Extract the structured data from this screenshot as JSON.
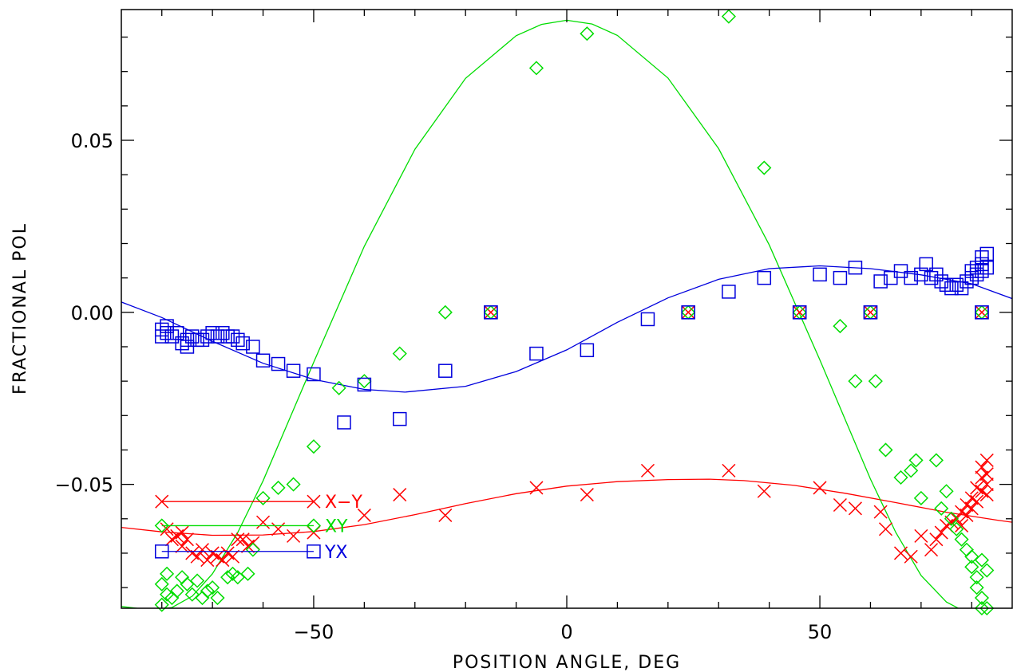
{
  "chart_data": {
    "type": "scatter",
    "xlabel": "POSITION ANGLE, DEG",
    "ylabel": "FRACTIONAL POL",
    "xlim": [
      -88,
      88
    ],
    "ylim": [
      -0.086,
      0.088
    ],
    "x_ticks": [
      {
        "value": -50,
        "label": "−50"
      },
      {
        "value": 0,
        "label": "0"
      },
      {
        "value": 50,
        "label": "50"
      }
    ],
    "y_ticks": [
      {
        "value": -0.05,
        "label": "−0.05"
      },
      {
        "value": 0.0,
        "label": "0.00"
      },
      {
        "value": 0.05,
        "label": "0.05"
      }
    ],
    "grid": false,
    "legend_position": "left",
    "series": [
      {
        "name": "X−Y",
        "color": "#ff0000",
        "marker": "cross",
        "points": [
          [
            -79,
            -0.063
          ],
          [
            -78,
            -0.066
          ],
          [
            -77,
            -0.065
          ],
          [
            -76,
            -0.068
          ],
          [
            -76,
            -0.064
          ],
          [
            -75,
            -0.066
          ],
          [
            -74,
            -0.07
          ],
          [
            -73,
            -0.071
          ],
          [
            -72,
            -0.069
          ],
          [
            -71,
            -0.072
          ],
          [
            -70,
            -0.07
          ],
          [
            -69,
            -0.071
          ],
          [
            -68,
            -0.072
          ],
          [
            -67,
            -0.07
          ],
          [
            -66,
            -0.071
          ],
          [
            -65,
            -0.066
          ],
          [
            -64,
            -0.066
          ],
          [
            -63,
            -0.068
          ],
          [
            -62,
            -0.067
          ],
          [
            -60,
            -0.061
          ],
          [
            -57,
            -0.063
          ],
          [
            -54,
            -0.065
          ],
          [
            -50,
            -0.064
          ],
          [
            -40,
            -0.059
          ],
          [
            -33,
            -0.053
          ],
          [
            -24,
            -0.059
          ],
          [
            -6,
            -0.051
          ],
          [
            4,
            -0.053
          ],
          [
            16,
            -0.046
          ],
          [
            32,
            -0.046
          ],
          [
            39,
            -0.052
          ],
          [
            50,
            -0.051
          ],
          [
            54,
            -0.056
          ],
          [
            57,
            -0.057
          ],
          [
            62,
            -0.058
          ],
          [
            63,
            -0.063
          ],
          [
            66,
            -0.07
          ],
          [
            68,
            -0.071
          ],
          [
            70,
            -0.065
          ],
          [
            72,
            -0.069
          ],
          [
            73,
            -0.066
          ],
          [
            74,
            -0.064
          ],
          [
            75,
            -0.062
          ],
          [
            76,
            -0.061
          ],
          [
            77,
            -0.06
          ],
          [
            78,
            -0.058
          ],
          [
            78,
            -0.062
          ],
          [
            79,
            -0.056
          ],
          [
            79,
            -0.059
          ],
          [
            80,
            -0.054
          ],
          [
            80,
            -0.057
          ],
          [
            81,
            -0.051
          ],
          [
            81,
            -0.055
          ],
          [
            82,
            -0.048
          ],
          [
            82,
            -0.052
          ],
          [
            82,
            -0.045
          ],
          [
            83,
            -0.05
          ],
          [
            83,
            -0.043
          ],
          [
            83,
            -0.047
          ],
          [
            83,
            -0.053
          ]
        ],
        "fit": [
          [
            -88,
            -0.0625
          ],
          [
            -80,
            -0.0638
          ],
          [
            -70,
            -0.0648
          ],
          [
            -60,
            -0.0647
          ],
          [
            -50,
            -0.0637
          ],
          [
            -40,
            -0.0617
          ],
          [
            -30,
            -0.0588
          ],
          [
            -20,
            -0.0556
          ],
          [
            -10,
            -0.0527
          ],
          [
            0,
            -0.0505
          ],
          [
            10,
            -0.0492
          ],
          [
            20,
            -0.0486
          ],
          [
            28,
            -0.0485
          ],
          [
            35,
            -0.0489
          ],
          [
            45,
            -0.0503
          ],
          [
            55,
            -0.0526
          ],
          [
            65,
            -0.0553
          ],
          [
            75,
            -0.0581
          ],
          [
            85,
            -0.0604
          ],
          [
            88,
            -0.061
          ]
        ]
      },
      {
        "name": "XY",
        "color": "#00dd00",
        "marker": "diamond",
        "points": [
          [
            -80,
            -0.085
          ],
          [
            -80,
            -0.079
          ],
          [
            -79,
            -0.082
          ],
          [
            -79,
            -0.076
          ],
          [
            -78,
            -0.083
          ],
          [
            -77,
            -0.081
          ],
          [
            -76,
            -0.077
          ],
          [
            -75,
            -0.079
          ],
          [
            -74,
            -0.082
          ],
          [
            -73,
            -0.078
          ],
          [
            -72,
            -0.083
          ],
          [
            -71,
            -0.081
          ],
          [
            -70,
            -0.08
          ],
          [
            -69,
            -0.083
          ],
          [
            -67,
            -0.077
          ],
          [
            -66,
            -0.076
          ],
          [
            -65,
            -0.077
          ],
          [
            -63,
            -0.076
          ],
          [
            -62,
            -0.069
          ],
          [
            -60,
            -0.054
          ],
          [
            -57,
            -0.051
          ],
          [
            -54,
            -0.05
          ],
          [
            -50,
            -0.039
          ],
          [
            -45,
            -0.022
          ],
          [
            -40,
            -0.02
          ],
          [
            -33,
            -0.012
          ],
          [
            -24,
            0.0
          ],
          [
            -6,
            0.071
          ],
          [
            4,
            0.081
          ],
          [
            32,
            0.086
          ],
          [
            39,
            0.042
          ],
          [
            54,
            -0.004
          ],
          [
            57,
            -0.02
          ],
          [
            61,
            -0.02
          ],
          [
            63,
            -0.04
          ],
          [
            66,
            -0.048
          ],
          [
            68,
            -0.046
          ],
          [
            69,
            -0.043
          ],
          [
            70,
            -0.054
          ],
          [
            73,
            -0.043
          ],
          [
            74,
            -0.057
          ],
          [
            75,
            -0.052
          ],
          [
            76,
            -0.06
          ],
          [
            77,
            -0.063
          ],
          [
            78,
            -0.066
          ],
          [
            79,
            -0.069
          ],
          [
            80,
            -0.071
          ],
          [
            80,
            -0.074
          ],
          [
            81,
            -0.077
          ],
          [
            81,
            -0.08
          ],
          [
            82,
            -0.072
          ],
          [
            82,
            -0.083
          ],
          [
            82,
            -0.086
          ],
          [
            83,
            -0.086
          ],
          [
            83,
            -0.075
          ]
        ],
        "fit": [
          [
            -88,
            -0.0855
          ],
          [
            -82,
            -0.0865
          ],
          [
            -78,
            -0.0858
          ],
          [
            -74,
            -0.0825
          ],
          [
            -70,
            -0.076
          ],
          [
            -65,
            -0.064
          ],
          [
            -60,
            -0.049
          ],
          [
            -50,
            -0.0145
          ],
          [
            -40,
            0.0192
          ],
          [
            -30,
            0.0474
          ],
          [
            -20,
            0.068
          ],
          [
            -10,
            0.0804
          ],
          [
            -5,
            0.0837
          ],
          [
            0,
            0.0849
          ],
          [
            5,
            0.0838
          ],
          [
            10,
            0.0805
          ],
          [
            20,
            0.0681
          ],
          [
            30,
            0.0476
          ],
          [
            40,
            0.0196
          ],
          [
            50,
            -0.0138
          ],
          [
            60,
            -0.0485
          ],
          [
            65,
            -0.064
          ],
          [
            70,
            -0.0765
          ],
          [
            75,
            -0.0842
          ],
          [
            78,
            -0.0865
          ],
          [
            80,
            -0.087
          ],
          [
            83,
            -0.0866
          ]
        ]
      },
      {
        "name": "YX",
        "color": "#0000dd",
        "marker": "square",
        "points": [
          [
            -80,
            -0.007
          ],
          [
            -80,
            -0.005
          ],
          [
            -79,
            -0.006
          ],
          [
            -79,
            -0.004
          ],
          [
            -78,
            -0.007
          ],
          [
            -77,
            -0.006
          ],
          [
            -76,
            -0.009
          ],
          [
            -75,
            -0.01
          ],
          [
            -75,
            -0.008
          ],
          [
            -74,
            -0.007
          ],
          [
            -73,
            -0.008
          ],
          [
            -72,
            -0.008
          ],
          [
            -71,
            -0.007
          ],
          [
            -70,
            -0.006
          ],
          [
            -69,
            -0.007
          ],
          [
            -68,
            -0.006
          ],
          [
            -67,
            -0.007
          ],
          [
            -66,
            -0.007
          ],
          [
            -65,
            -0.008
          ],
          [
            -64,
            -0.009
          ],
          [
            -62,
            -0.01
          ],
          [
            -60,
            -0.014
          ],
          [
            -57,
            -0.015
          ],
          [
            -54,
            -0.017
          ],
          [
            -50,
            -0.018
          ],
          [
            -40,
            -0.021
          ],
          [
            -44,
            -0.032
          ],
          [
            -33,
            -0.031
          ],
          [
            -24,
            -0.017
          ],
          [
            -15,
            0.0
          ],
          [
            -6,
            -0.012
          ],
          [
            4,
            -0.011
          ],
          [
            16,
            -0.002
          ],
          [
            24,
            0.0
          ],
          [
            32,
            0.006
          ],
          [
            39,
            0.01
          ],
          [
            46,
            0.0
          ],
          [
            50,
            0.011
          ],
          [
            54,
            0.01
          ],
          [
            57,
            0.013
          ],
          [
            60,
            0.0
          ],
          [
            62,
            0.009
          ],
          [
            64,
            0.01
          ],
          [
            66,
            0.012
          ],
          [
            68,
            0.01
          ],
          [
            70,
            0.011
          ],
          [
            71,
            0.014
          ],
          [
            72,
            0.01
          ],
          [
            73,
            0.011
          ],
          [
            74,
            0.009
          ],
          [
            75,
            0.008
          ],
          [
            76,
            0.007
          ],
          [
            77,
            0.008
          ],
          [
            78,
            0.007
          ],
          [
            79,
            0.009
          ],
          [
            80,
            0.01
          ],
          [
            80,
            0.012
          ],
          [
            81,
            0.011
          ],
          [
            81,
            0.013
          ],
          [
            82,
            0.014
          ],
          [
            82,
            0.016
          ],
          [
            82,
            0.012
          ],
          [
            83,
            0.013
          ],
          [
            83,
            0.017
          ],
          [
            82,
            0.0
          ]
        ],
        "fit": [
          [
            -88,
            0.003
          ],
          [
            -80,
            -0.0015
          ],
          [
            -70,
            -0.0084
          ],
          [
            -60,
            -0.0148
          ],
          [
            -50,
            -0.0195
          ],
          [
            -40,
            -0.0224
          ],
          [
            -32,
            -0.0232
          ],
          [
            -20,
            -0.0215
          ],
          [
            -10,
            -0.0172
          ],
          [
            0,
            -0.0109
          ],
          [
            10,
            -0.0029
          ],
          [
            20,
            0.0042
          ],
          [
            30,
            0.0096
          ],
          [
            40,
            0.0127
          ],
          [
            50,
            0.0135
          ],
          [
            60,
            0.0127
          ],
          [
            70,
            0.0109
          ],
          [
            80,
            0.0083
          ],
          [
            88,
            0.004
          ]
        ]
      }
    ],
    "overlap_markers_x": [
      -15,
      24,
      46,
      60,
      82
    ],
    "legend": [
      {
        "label": "X−Y",
        "series": 0,
        "line_y": -0.055
      },
      {
        "label": "XY",
        "series": 1,
        "line_y": -0.062
      },
      {
        "label": "YX",
        "series": 2,
        "line_y": -0.0695
      }
    ],
    "legend_line_x": [
      -80,
      -50
    ]
  }
}
